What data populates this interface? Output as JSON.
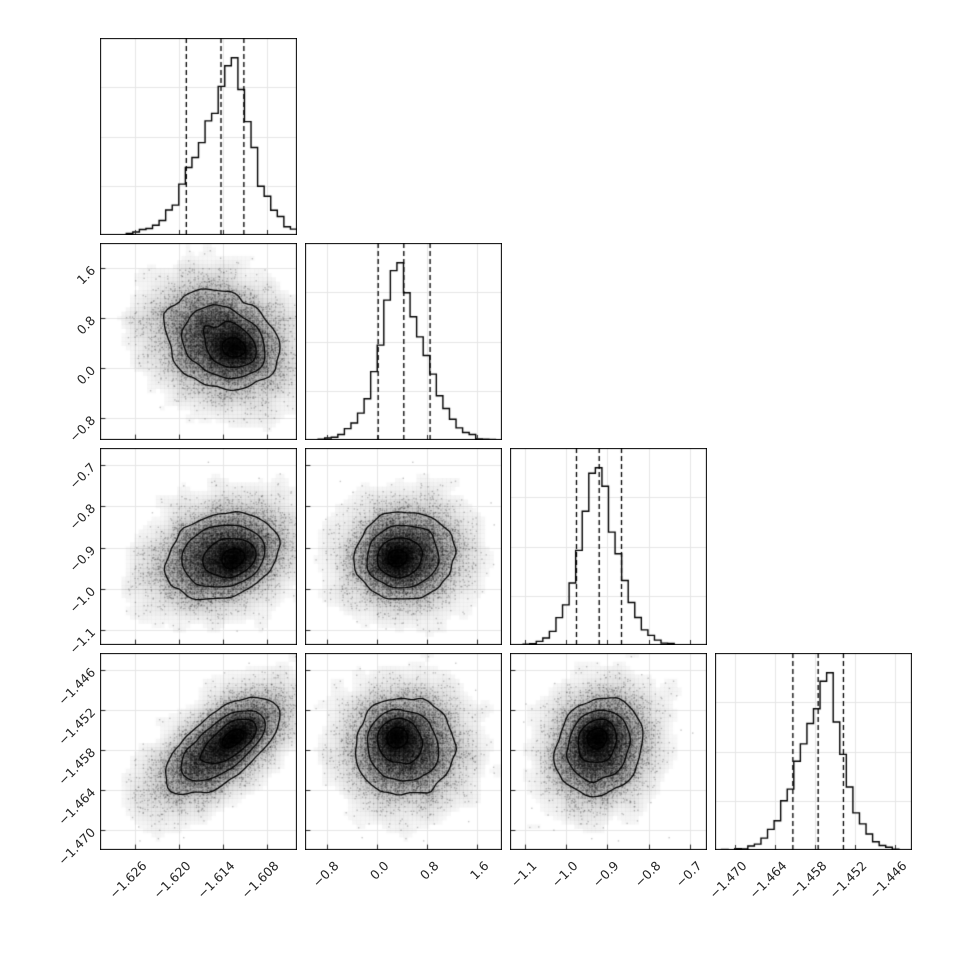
{
  "chart_data": {
    "type": "corner",
    "n_params": 4,
    "n_samples_display": 8000,
    "histogram_bins": 30,
    "density_grid": 46,
    "contour_mass_levels": [
      0.1175,
      0.3935,
      0.6753,
      0.8647
    ],
    "quantile_fractions": [
      0.16,
      0.5,
      0.84
    ],
    "colors": {
      "line": "#000000",
      "grid": "#e6e6e6",
      "scatter": "rgba(0,0,0,0.22)",
      "background": "#ffffff",
      "tick_label": "#262626",
      "spine": "#000000"
    },
    "params": [
      {
        "id": "p1",
        "range": [
          -1.6307,
          -1.604
        ],
        "mean": -1.6143,
        "sigma": 0.004,
        "quantiles": [
          -1.619,
          -1.6143,
          -1.6112
        ],
        "ticks": [
          {
            "v": -1.626,
            "label": "−1.626"
          },
          {
            "v": -1.62,
            "label": "−1.620"
          },
          {
            "v": -1.614,
            "label": "−1.614"
          },
          {
            "v": -1.608,
            "label": "−1.608"
          }
        ]
      },
      {
        "id": "p2",
        "range": [
          -1.15,
          2.0
        ],
        "mean": 0.43,
        "sigma": 0.41,
        "quantiles": [
          0.02,
          0.43,
          0.85
        ],
        "ticks": [
          {
            "v": -0.8,
            "label": "−0.8"
          },
          {
            "v": 0.0,
            "label": "0.0"
          },
          {
            "v": 0.8,
            "label": "0.8"
          },
          {
            "v": 1.6,
            "label": "1.6"
          }
        ]
      },
      {
        "id": "p3",
        "range": [
          -1.136,
          -0.659
        ],
        "mean": -0.92,
        "sigma": 0.055,
        "quantiles": [
          -0.975,
          -0.92,
          -0.866
        ],
        "ticks": [
          {
            "v": -1.1,
            "label": "−1.1"
          },
          {
            "v": -1.0,
            "label": "−1.0"
          },
          {
            "v": -0.9,
            "label": "−0.9"
          },
          {
            "v": -0.8,
            "label": "−0.8"
          },
          {
            "v": -0.7,
            "label": "−0.7"
          }
        ]
      },
      {
        "id": "p4",
        "range": [
          -1.473,
          -1.4434
        ],
        "mean": -1.4575,
        "sigma": 0.0038,
        "quantiles": [
          -1.4613,
          -1.4575,
          -1.4537
        ],
        "ticks": [
          {
            "v": -1.47,
            "label": "−1.470"
          },
          {
            "v": -1.464,
            "label": "−1.464"
          },
          {
            "v": -1.458,
            "label": "−1.458"
          },
          {
            "v": -1.452,
            "label": "−1.452"
          },
          {
            "v": -1.446,
            "label": "−1.446"
          }
        ]
      }
    ],
    "correlation": [
      [
        1.0,
        -0.18,
        0.25,
        0.65
      ],
      [
        -0.18,
        1.0,
        0.05,
        0.0
      ],
      [
        0.25,
        0.05,
        1.0,
        0.15
      ],
      [
        0.65,
        0.0,
        0.15,
        1.0
      ]
    ],
    "secondary_mode": {
      "weight": 0.18,
      "scale": 0.38,
      "offset_sigma": [
        0.5,
        -0.3,
        -0.15,
        0.4
      ]
    }
  }
}
